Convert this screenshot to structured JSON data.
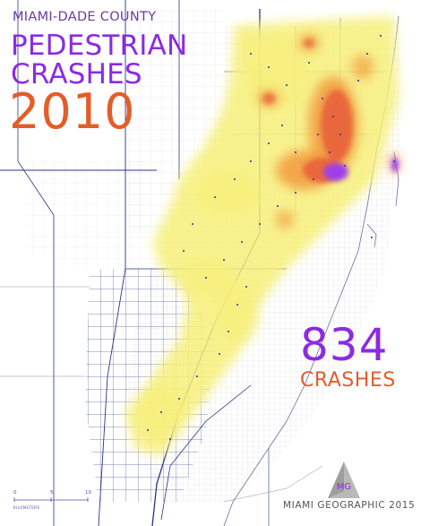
{
  "title": {
    "kicker": "MIAMI-DADE COUNTY",
    "line1": "PEDESTRIAN",
    "line2": "CRASHES",
    "year": "2010"
  },
  "stat": {
    "count": "834",
    "unit": "CRASHES"
  },
  "scale_bar": {
    "ticks": [
      "0",
      "5",
      "10"
    ],
    "units": "KILOMETERS"
  },
  "logo": {
    "letters": "MG"
  },
  "credit": "MIAMI GEOGRAPHIC 2015",
  "heatmap_legend_colors": {
    "low": "#f7f07a",
    "medium": "#f29a3c",
    "high": "#e8613c",
    "highest": "#9b3df0"
  },
  "colors": {
    "title_purple": "#8b2be2",
    "year_orange": "#e35d2a",
    "road_navy": "#2a3580",
    "crash_point": "#1f2fb8"
  }
}
